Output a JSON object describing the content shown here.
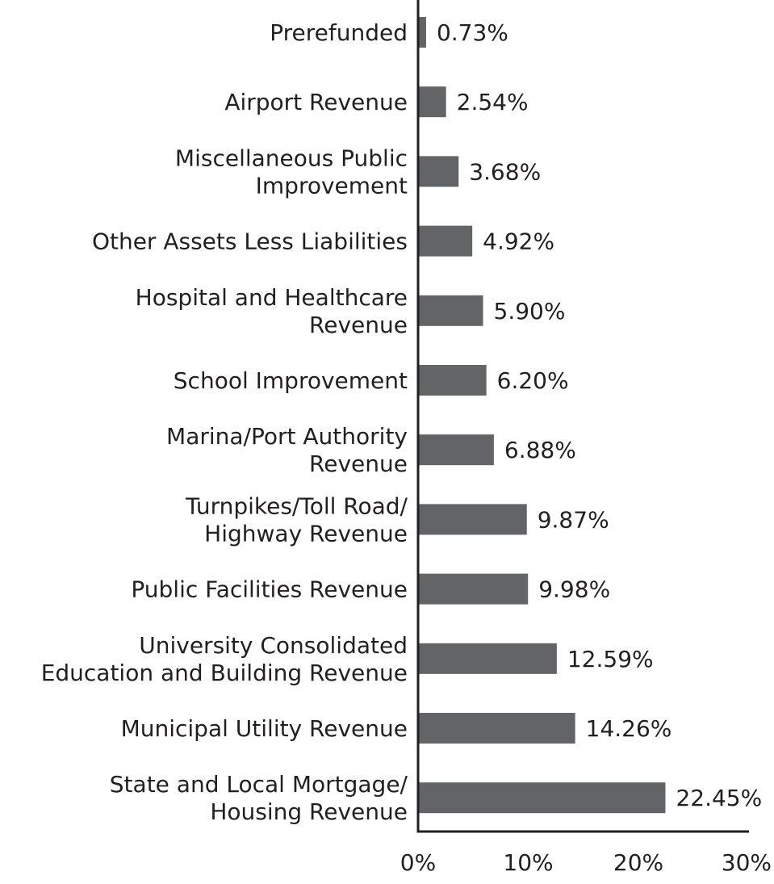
{
  "chart_data": {
    "type": "bar",
    "orientation": "horizontal",
    "categories": [
      [
        "Prerefunded"
      ],
      [
        "Airport Revenue"
      ],
      [
        "Miscellaneous Public",
        "Improvement"
      ],
      [
        "Other Assets Less Liabilities"
      ],
      [
        "Hospital and Healthcare",
        "Revenue"
      ],
      [
        "School Improvement"
      ],
      [
        "Marina/Port Authority",
        "Revenue"
      ],
      [
        "Turnpikes/Toll Road/",
        "Highway Revenue"
      ],
      [
        "Public Facilities Revenue"
      ],
      [
        "University Consolidated",
        "Education and Building Revenue"
      ],
      [
        "Municipal Utility Revenue"
      ],
      [
        "State and Local Mortgage/",
        "Housing Revenue"
      ]
    ],
    "values": [
      0.73,
      2.54,
      3.68,
      4.92,
      5.9,
      6.2,
      6.88,
      9.87,
      9.98,
      12.59,
      14.26,
      22.45
    ],
    "value_labels": [
      "0.73%",
      "2.54%",
      "3.68%",
      "4.92%",
      "5.90%",
      "6.20%",
      "6.88%",
      "9.87%",
      "9.98%",
      "12.59%",
      "14.26%",
      "22.45%"
    ],
    "xlim": [
      0,
      30
    ],
    "x_ticks": [
      0,
      10,
      20,
      30
    ],
    "x_tick_labels": [
      "0%",
      "10%",
      "20%",
      "30%"
    ],
    "title": "",
    "xlabel": "",
    "ylabel": "",
    "grid": false,
    "bar_color": "#636466",
    "text_color": "#231f20"
  }
}
